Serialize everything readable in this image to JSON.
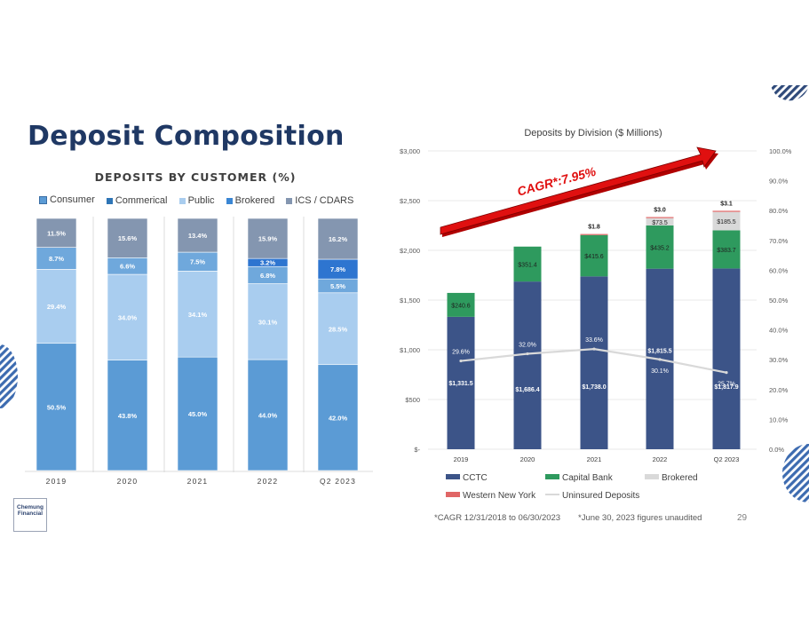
{
  "slide": {
    "title": "Deposit Composition",
    "page_number": "29",
    "footnote_cagr": "*CAGR 12/31/2018 to 06/30/2023",
    "footnote_unaudited": "*June 30, 2023 figures unaudited",
    "logo_text": "Chemung Financial"
  },
  "colors": {
    "navy": "#1f3864",
    "consumer": "#5b9bd5",
    "commercial": "#2e75b6",
    "public": "#a9cdef",
    "brokered": "#3a86d4",
    "ics": "#8496b0",
    "cctc": "#3c5488",
    "capital_bank": "#2e9a5e",
    "brokered_right": "#d9d9d9",
    "western_ny": "#e06666",
    "arrow": "#e01010"
  },
  "chart_data": [
    {
      "type": "bar",
      "stacked": true,
      "percent": true,
      "title": "DEPOSITS BY CUSTOMER (%)",
      "categories": [
        "2019",
        "2020",
        "2021",
        "2022",
        "Q2 2023"
      ],
      "legend": [
        "Consumer",
        "Commerical",
        "Public",
        "Brokered",
        "ICS / CDARS"
      ],
      "series": [
        {
          "name": "Consumer",
          "values": [
            50.5,
            43.8,
            45.0,
            44.0,
            42.0
          ],
          "labels": [
            "50.5%",
            "43.8%",
            "45.0%",
            "44.0%",
            "42.0%"
          ]
        },
        {
          "name": "Public",
          "values": [
            29.4,
            34.0,
            34.1,
            30.1,
            28.5
          ],
          "labels": [
            "29.4%",
            "34.0%",
            "34.1%",
            "30.1%",
            "28.5%"
          ]
        },
        {
          "name": "Commerical",
          "values": [
            8.7,
            6.6,
            7.5,
            6.8,
            5.5
          ],
          "labels": [
            "8.7%",
            "6.6%",
            "7.5%",
            "6.8%",
            "5.5%"
          ]
        },
        {
          "name": "Brokered",
          "values": [
            0,
            0,
            0,
            3.2,
            7.8
          ],
          "labels": [
            "",
            "",
            "",
            "3.2%",
            "7.8%"
          ]
        },
        {
          "name": "ICS / CDARS",
          "values": [
            11.5,
            15.6,
            13.4,
            15.9,
            16.2
          ],
          "labels": [
            "11.5%",
            "15.6%",
            "13.4%",
            "15.9%",
            "16.2%"
          ]
        }
      ]
    },
    {
      "type": "bar",
      "stacked": true,
      "title": "Deposits by Division ($ Millions)",
      "categories": [
        "2019",
        "2020",
        "2021",
        "2022",
        "Q2 2023"
      ],
      "ylim": [
        0,
        3000
      ],
      "y_ticks": [
        "$-",
        "$500",
        "$1,000",
        "$1,500",
        "$2,000",
        "$2,500",
        "$3,000"
      ],
      "y2lim": [
        0,
        100
      ],
      "y2_ticks": [
        "0.0%",
        "10.0%",
        "20.0%",
        "30.0%",
        "40.0%",
        "50.0%",
        "60.0%",
        "70.0%",
        "80.0%",
        "90.0%",
        "100.0%"
      ],
      "series": [
        {
          "name": "CCTC",
          "values": [
            1331.5,
            1686.4,
            1738.0,
            1815.5,
            1817.9
          ],
          "labels": [
            "$1,331.5",
            "$1,686.4",
            "$1,738.0",
            "$1,815.5",
            "$1,817.9"
          ]
        },
        {
          "name": "Capital Bank",
          "values": [
            240.6,
            351.4,
            415.6,
            435.2,
            383.7
          ],
          "labels": [
            "$240.6",
            "$351.4",
            "$415.6",
            "$435.2",
            "$383.7"
          ]
        },
        {
          "name": "Brokered",
          "values": [
            0,
            0,
            0,
            73.5,
            185.5
          ],
          "labels": [
            "",
            "",
            "",
            "$73.5",
            "$185.5"
          ]
        },
        {
          "name": "Western New York",
          "values": [
            0,
            0,
            1.8,
            3.0,
            3.1
          ],
          "labels": [
            "",
            "",
            "$1.8",
            "$3.0",
            "$3.1"
          ]
        }
      ],
      "line": {
        "name": "Uninsured Deposits",
        "values": [
          29.6,
          32.0,
          33.6,
          30.1,
          25.7
        ],
        "labels": [
          "29.6%",
          "32.0%",
          "33.6%",
          "30.1%",
          "25.7%"
        ]
      },
      "legend": [
        "CCTC",
        "Capital Bank",
        "Brokered",
        "Western New York",
        "Uninsured Deposits"
      ],
      "annotation": "CAGR*:7.95%"
    }
  ]
}
